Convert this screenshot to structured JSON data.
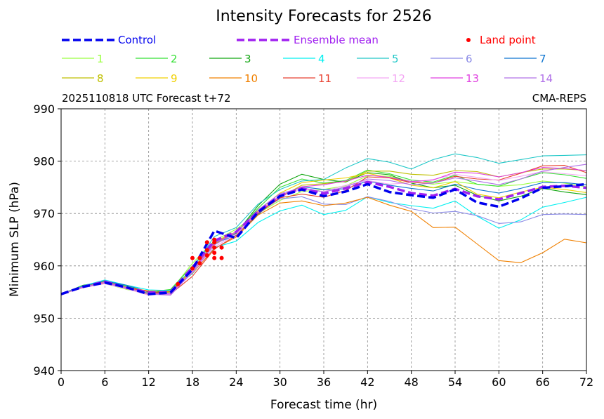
{
  "chart_data": {
    "type": "line",
    "title": "Intensity Forecasts for 2526",
    "subtitle_left": "2025110818 UTC Forecast t+72",
    "subtitle_right": "CMA-REPS",
    "xlabel": "Forecast time (hr)",
    "ylabel": "Minimum SLP (hPa)",
    "xlim": [
      0,
      72
    ],
    "ylim": [
      940,
      990
    ],
    "x_ticks": [
      "0",
      "6",
      "12",
      "18",
      "24",
      "30",
      "36",
      "42",
      "48",
      "54",
      "60",
      "66",
      "72"
    ],
    "y_ticks": [
      "940",
      "950",
      "960",
      "970",
      "980",
      "990"
    ],
    "grid": true,
    "legend_placement": "top",
    "x": [
      0,
      3,
      6,
      9,
      12,
      15,
      18,
      21,
      24,
      27,
      30,
      33,
      36,
      39,
      42,
      45,
      48,
      51,
      54,
      57,
      60,
      63,
      66,
      69,
      72
    ],
    "control": {
      "name": "Control",
      "color": "#0000ee",
      "dashed": true,
      "values": [
        954.6,
        956,
        956.8,
        955.9,
        954.6,
        954.9,
        959.3,
        966.7,
        965.3,
        970.3,
        973.3,
        974.6,
        973.3,
        974.2,
        975.6,
        974.1,
        973.5,
        973,
        974.6,
        972.1,
        971.3,
        972.9,
        974.9,
        975.2,
        975.6
      ]
    },
    "ensemble_mean": {
      "name": "Ensemble mean",
      "color": "#a020f0",
      "dashed": true,
      "values": [
        954.6,
        956,
        957,
        955.8,
        954.9,
        955,
        959.7,
        964.8,
        966.5,
        970.4,
        973.4,
        974.8,
        973.8,
        974.8,
        976,
        975.1,
        973.9,
        973.4,
        974.7,
        973.3,
        972.7,
        973.9,
        975.1,
        975.3,
        974.9
      ]
    },
    "land_point": {
      "name": "Land point",
      "color": "#ff0000",
      "points": [
        [
          16,
          956.5
        ],
        [
          18,
          959.5
        ],
        [
          18,
          961.5
        ],
        [
          19,
          960.5
        ],
        [
          19,
          961.5
        ],
        [
          20,
          962
        ],
        [
          20,
          963
        ],
        [
          20,
          964.5
        ],
        [
          21,
          961.5
        ],
        [
          21,
          962.5
        ],
        [
          21,
          963.5
        ],
        [
          21,
          964.5
        ],
        [
          21,
          965
        ],
        [
          22,
          961.5
        ],
        [
          22,
          963.5
        ]
      ]
    },
    "members": [
      {
        "name": "1",
        "color": "#9aff40",
        "values": [
          954.6,
          956,
          956.6,
          955.5,
          954.8,
          955.2,
          960.5,
          964.8,
          967,
          970,
          972.5,
          974.2,
          974.6,
          975.3,
          977.2,
          977.1,
          976.1,
          975.6,
          976.1,
          975.6,
          975.2,
          975.5,
          976.2,
          975.8,
          975.1
        ]
      },
      {
        "name": "2",
        "color": "#35e035",
        "values": [
          954.6,
          955.9,
          956.9,
          956.2,
          955,
          955.5,
          960,
          964.7,
          966.3,
          971,
          975,
          976.6,
          975.8,
          976.3,
          978.3,
          977.6,
          976.4,
          976,
          977.3,
          975.6,
          975.2,
          976.6,
          977.8,
          977.4,
          976.7
        ]
      },
      {
        "name": "3",
        "color": "#12a612",
        "values": [
          954.6,
          956.3,
          957,
          955.6,
          954.8,
          955.3,
          959.2,
          964.5,
          966.2,
          971.5,
          975.6,
          977.5,
          976.5,
          976,
          977.8,
          977.4,
          975.8,
          974.9,
          975.4,
          973.5,
          972.4,
          973.3,
          974.8,
          974.1,
          973.6
        ]
      },
      {
        "name": "4",
        "color": "#00f0f0",
        "values": [
          954.6,
          956.2,
          957.3,
          956.3,
          955.4,
          955.3,
          958.5,
          963.5,
          964.7,
          968.3,
          970.5,
          971.6,
          969.8,
          970.6,
          973.2,
          972.1,
          971.5,
          971,
          972.4,
          969.5,
          967.2,
          968.8,
          971.2,
          972.1,
          973.1
        ]
      },
      {
        "name": "5",
        "color": "#20c8c8",
        "values": [
          954.6,
          956,
          957.2,
          956,
          955,
          955.3,
          959.5,
          965.6,
          967.3,
          971.8,
          974.6,
          976.2,
          976.5,
          978.7,
          980.5,
          979.8,
          978.5,
          980.3,
          981.4,
          980.7,
          979.6,
          980.3,
          981,
          981.1,
          981.2
        ]
      },
      {
        "name": "6",
        "color": "#8a8ae6",
        "values": [
          954.6,
          956.1,
          957,
          955.9,
          954.6,
          954.9,
          959.4,
          964.6,
          966,
          970.2,
          972.8,
          973.2,
          971.8,
          971.7,
          973.2,
          972.3,
          970.9,
          970.1,
          970.4,
          969.6,
          968.1,
          968.4,
          969.8,
          969.9,
          969.8
        ]
      },
      {
        "name": "7",
        "color": "#0f75d0",
        "values": [
          954.6,
          956.1,
          957.1,
          956.3,
          955,
          954.8,
          959.1,
          964.3,
          965.8,
          969.8,
          973.4,
          975.1,
          974.6,
          974.7,
          976.2,
          975.4,
          974.8,
          974.3,
          975.6,
          974.6,
          973.9,
          974.8,
          975.9,
          975.9,
          975.5
        ]
      },
      {
        "name": "8",
        "color": "#bfbf00",
        "values": [
          954.6,
          956,
          956.9,
          955.6,
          954.7,
          955,
          959.3,
          964.2,
          966.4,
          970.3,
          973.1,
          975.4,
          975.7,
          976.1,
          978.1,
          978.1,
          977.5,
          977.3,
          978.2,
          978,
          977,
          977.8,
          978.5,
          978.5,
          978.2
        ]
      },
      {
        "name": "9",
        "color": "#f0d000",
        "values": [
          954.6,
          955.8,
          956.7,
          955.7,
          954.5,
          954.7,
          959.3,
          964.6,
          966.5,
          970.5,
          973.9,
          975.9,
          976.4,
          976.8,
          977.7,
          976.8,
          975.4,
          974.9,
          976.1,
          973.7,
          973,
          974.1,
          975,
          974.6,
          974
        ]
      },
      {
        "name": "10",
        "color": "#f08000",
        "values": [
          954.6,
          955.8,
          957,
          955.9,
          955.2,
          955.1,
          958.6,
          963.3,
          965.5,
          969.7,
          972,
          972.4,
          971.5,
          972,
          973.1,
          971.6,
          970.4,
          967.3,
          967.4,
          964.2,
          961,
          960.6,
          962.5,
          965.1,
          964.4
        ]
      },
      {
        "name": "11",
        "color": "#e84030",
        "values": [
          954.6,
          955.9,
          956.8,
          955.8,
          955.1,
          954.6,
          958,
          963.2,
          965.8,
          970,
          973,
          973.7,
          973.1,
          974.4,
          977,
          976.8,
          975.9,
          975.8,
          977.1,
          976.6,
          976.4,
          977.7,
          979.1,
          979.2,
          977.8
        ]
      },
      {
        "name": "12",
        "color": "#f4a6f4",
        "values": [
          954.6,
          955.8,
          956.6,
          955.6,
          954.4,
          954.8,
          958.7,
          963.6,
          966,
          970.3,
          973.2,
          974.7,
          974.2,
          975.4,
          976.3,
          975.6,
          975.9,
          976.5,
          977.5,
          976.9,
          976.3,
          977.1,
          978,
          977.6,
          977.2
        ]
      },
      {
        "name": "13",
        "color": "#e040e0",
        "values": [
          954.6,
          956,
          956.8,
          955.7,
          954.7,
          954.6,
          959.1,
          964.3,
          966.5,
          970.3,
          973.4,
          975.1,
          975.5,
          976.2,
          977.3,
          976.9,
          976.1,
          976.4,
          977.9,
          977.7,
          977,
          977.8,
          978.8,
          978.6,
          978.2
        ]
      },
      {
        "name": "14",
        "color": "#b070e8",
        "values": [
          954.6,
          955.9,
          956.9,
          955.8,
          954.6,
          954.4,
          958.8,
          964,
          966.4,
          970.7,
          973.8,
          974.9,
          974.1,
          975.1,
          976.6,
          976.3,
          975.5,
          975.8,
          976.8,
          976.2,
          975.5,
          976.6,
          978.1,
          978.8,
          979.4
        ]
      }
    ]
  }
}
